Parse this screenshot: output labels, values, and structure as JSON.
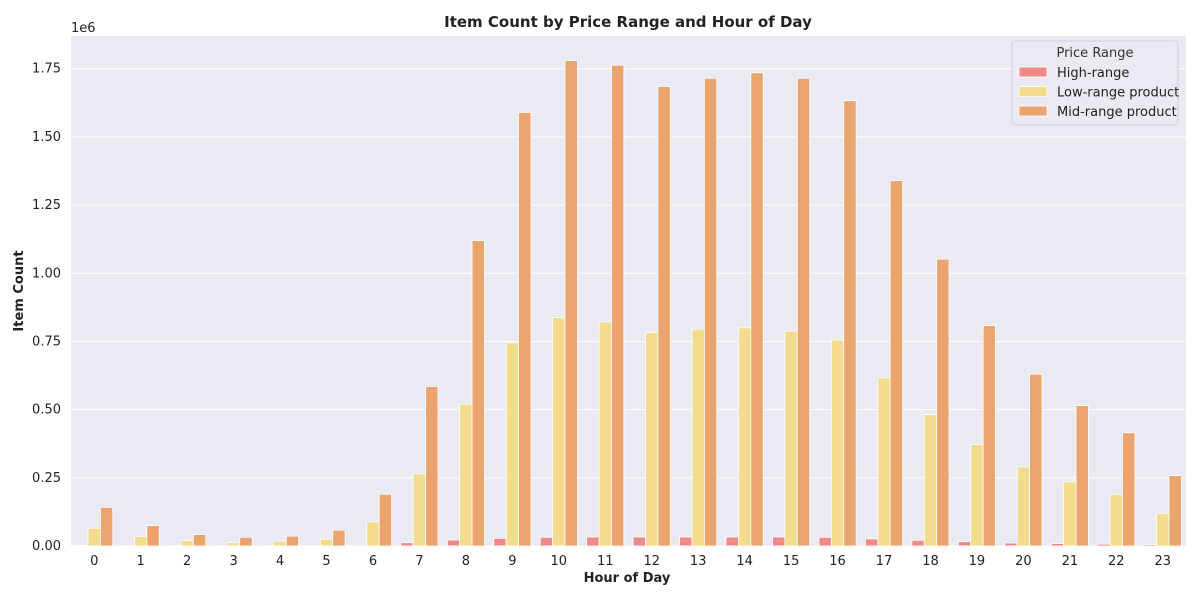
{
  "chart_data": {
    "type": "bar",
    "title": "Item Count by Price Range and Hour of Day",
    "xlabel": "Hour of Day",
    "ylabel": "Item Count",
    "y_offset_label": "1e6",
    "ylim": [
      0,
      1.87
    ],
    "yticks": [
      0.0,
      0.25,
      0.5,
      0.75,
      1.0,
      1.25,
      1.5,
      1.75
    ],
    "ytick_labels": [
      "0.00",
      "0.25",
      "0.50",
      "0.75",
      "1.00",
      "1.25",
      "1.50",
      "1.75"
    ],
    "grid": true,
    "legend_position": "top-right",
    "legend_title": "Price Range",
    "categories": [
      "0",
      "1",
      "2",
      "3",
      "4",
      "5",
      "6",
      "7",
      "8",
      "9",
      "10",
      "11",
      "12",
      "13",
      "14",
      "15",
      "16",
      "17",
      "18",
      "19",
      "20",
      "21",
      "22",
      "23"
    ],
    "series": [
      {
        "name": "High-range",
        "color": "#f08a8a",
        "values": [
          0.002,
          0.001,
          0.001,
          0.0005,
          0.0005,
          0.001,
          0.004,
          0.012,
          0.022,
          0.028,
          0.032,
          0.033,
          0.033,
          0.033,
          0.033,
          0.033,
          0.032,
          0.026,
          0.021,
          0.016,
          0.011,
          0.009,
          0.007,
          0.005
        ]
      },
      {
        "name": "Low-range product",
        "color": "#f3dc8e",
        "values": [
          0.065,
          0.035,
          0.02,
          0.013,
          0.018,
          0.025,
          0.088,
          0.265,
          0.52,
          0.745,
          0.838,
          0.822,
          0.783,
          0.795,
          0.8,
          0.788,
          0.755,
          0.617,
          0.482,
          0.372,
          0.29,
          0.235,
          0.19,
          0.12
        ]
      },
      {
        "name": "Mid-range product",
        "color": "#eca46e",
        "values": [
          0.142,
          0.075,
          0.042,
          0.032,
          0.036,
          0.058,
          0.19,
          0.585,
          1.12,
          1.59,
          1.78,
          1.763,
          1.685,
          1.715,
          1.735,
          1.715,
          1.633,
          1.34,
          1.052,
          0.808,
          0.63,
          0.515,
          0.415,
          0.258
        ]
      }
    ]
  }
}
